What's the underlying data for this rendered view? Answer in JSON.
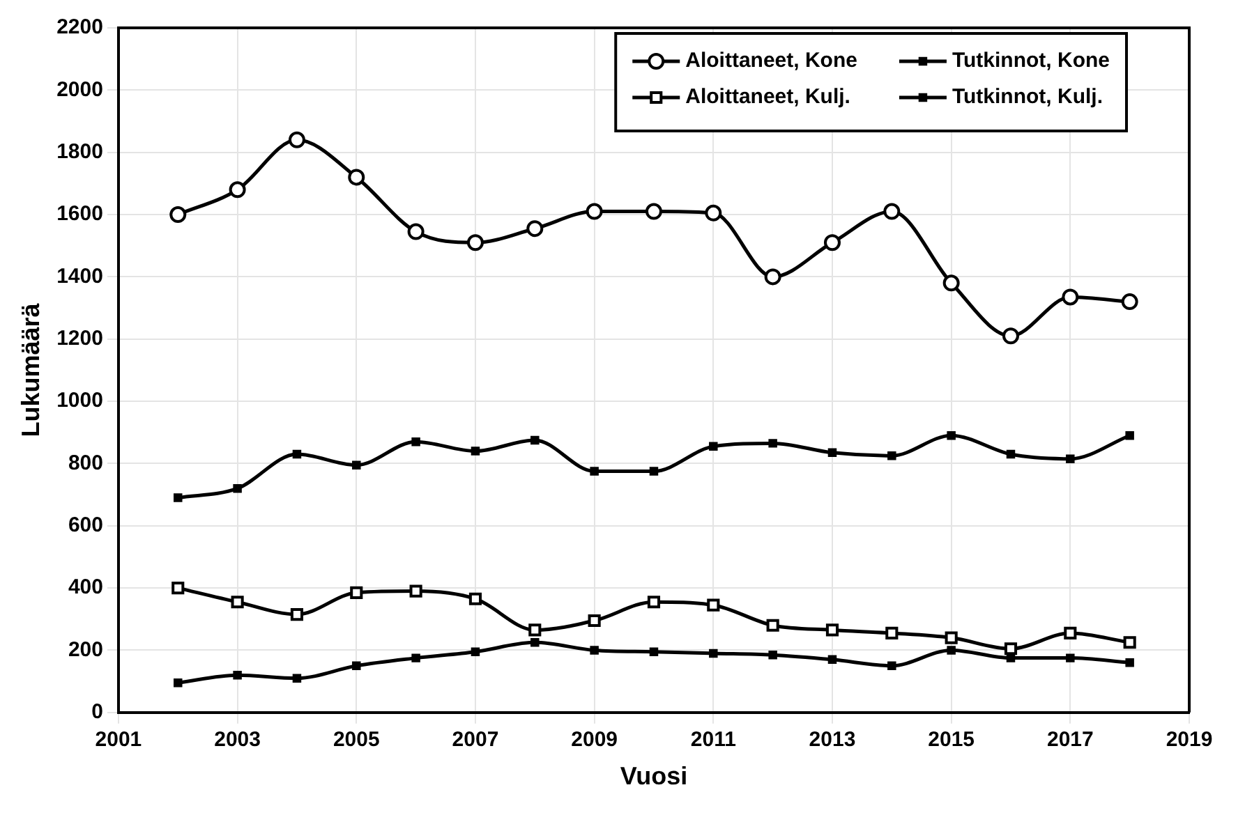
{
  "chart_data": {
    "type": "line",
    "xlabel": "Vuosi",
    "ylabel": "Lukumäärä",
    "x": [
      2002,
      2003,
      2004,
      2005,
      2006,
      2007,
      2008,
      2009,
      2010,
      2011,
      2012,
      2013,
      2014,
      2015,
      2016,
      2017,
      2018
    ],
    "series": [
      {
        "name": "Aloittaneet, Kone",
        "color": "#000000",
        "marker": "circle",
        "values": [
          1600,
          1680,
          1840,
          1720,
          1545,
          1510,
          1555,
          1610,
          1610,
          1605,
          1400,
          1510,
          1610,
          1380,
          1210,
          1335,
          1320
        ]
      },
      {
        "name": "Tutkinnot, Kone",
        "color": "#000000",
        "marker": "square",
        "values": [
          690,
          720,
          830,
          795,
          870,
          840,
          875,
          775,
          775,
          855,
          865,
          835,
          825,
          890,
          830,
          815,
          890
        ]
      },
      {
        "name": "Aloittaneet, Kulj.",
        "color": "#000000",
        "marker": "square",
        "values": [
          400,
          355,
          315,
          385,
          390,
          365,
          265,
          295,
          355,
          345,
          280,
          265,
          255,
          240,
          205,
          255,
          225
        ]
      },
      {
        "name": "Tutkinnot, Kulj.",
        "color": "#000000",
        "marker": "square",
        "values": [
          95,
          120,
          110,
          150,
          175,
          195,
          225,
          200,
          195,
          190,
          185,
          170,
          150,
          200,
          175,
          175,
          160
        ]
      }
    ],
    "xlim": [
      2001,
      2019
    ],
    "xticks": [
      2001,
      2003,
      2005,
      2007,
      2009,
      2011,
      2013,
      2015,
      2017,
      2019
    ],
    "ylim": [
      0,
      2200
    ],
    "yticks": [
      0,
      200,
      400,
      600,
      800,
      1000,
      1200,
      1400,
      1600,
      1800,
      2000,
      2200
    ],
    "grid": true,
    "legend": "top right",
    "line_style": "solid"
  }
}
